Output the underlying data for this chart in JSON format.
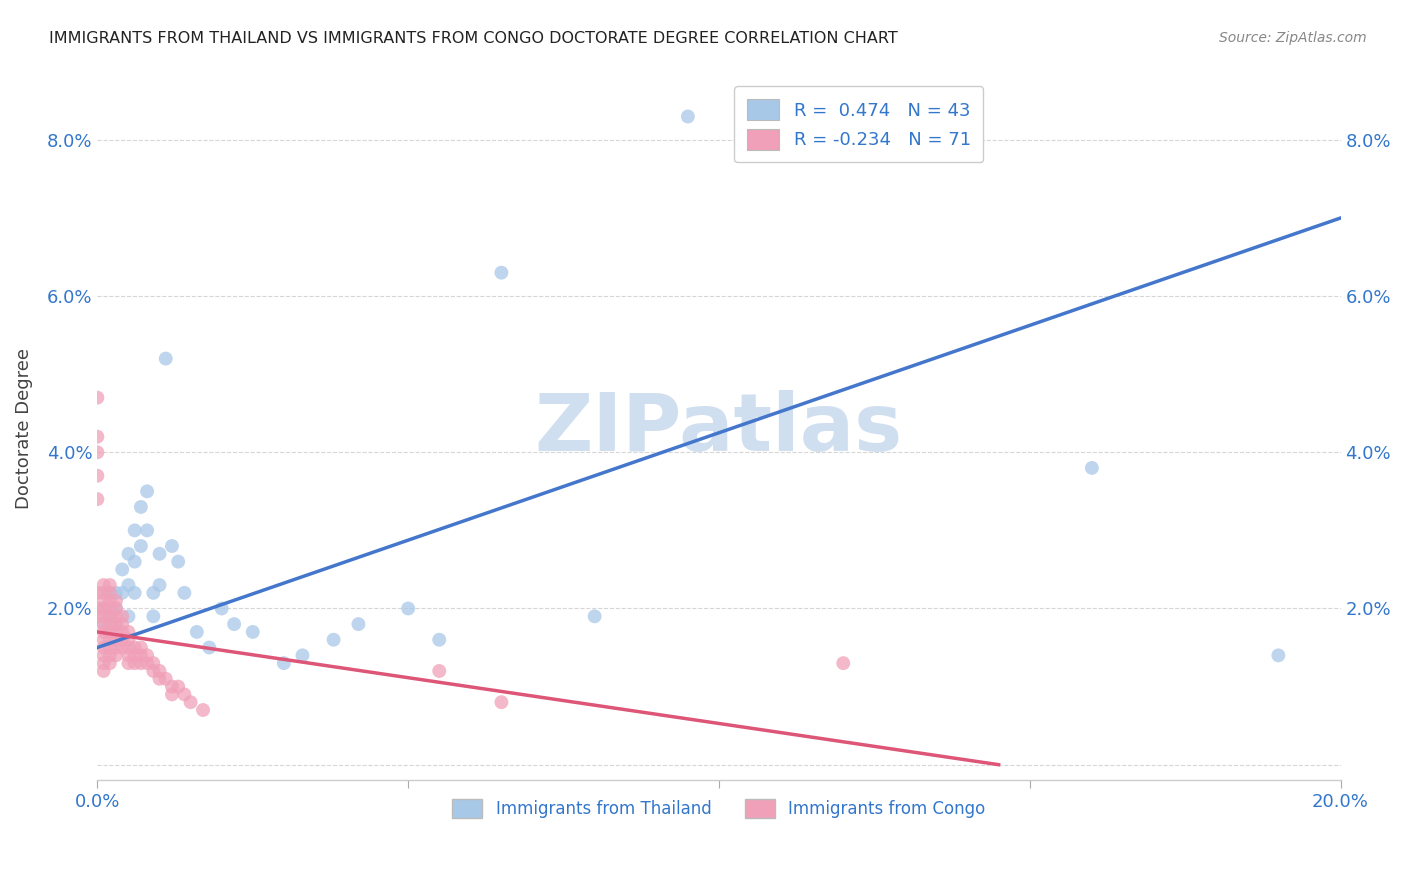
{
  "title": "IMMIGRANTS FROM THAILAND VS IMMIGRANTS FROM CONGO DOCTORATE DEGREE CORRELATION CHART",
  "source": "Source: ZipAtlas.com",
  "ylabel": "Doctorate Degree",
  "xlim": [
    0.0,
    0.2
  ],
  "ylim": [
    -0.002,
    0.088
  ],
  "yticks": [
    0.0,
    0.02,
    0.04,
    0.06,
    0.08
  ],
  "ytick_labels": [
    "",
    "2.0%",
    "4.0%",
    "6.0%",
    "8.0%"
  ],
  "xticks": [
    0.0,
    0.05,
    0.1,
    0.15,
    0.2
  ],
  "xtick_labels": [
    "0.0%",
    "",
    "",
    "",
    "20.0%"
  ],
  "thailand_color": "#a8c8e8",
  "congo_color": "#f0a0b8",
  "thailand_line_color": "#4477cc",
  "congo_line_color": "#dd5577",
  "watermark": "ZIPatlas",
  "watermark_color": "#d0dff0",
  "legend_R_thailand": "0.474",
  "legend_N_thailand": "43",
  "legend_R_congo": "-0.234",
  "legend_N_congo": "71",
  "thailand_x": [
    0.001,
    0.001,
    0.002,
    0.002,
    0.003,
    0.003,
    0.003,
    0.004,
    0.004,
    0.005,
    0.005,
    0.005,
    0.006,
    0.006,
    0.006,
    0.007,
    0.007,
    0.008,
    0.008,
    0.009,
    0.009,
    0.01,
    0.01,
    0.011,
    0.012,
    0.013,
    0.014,
    0.016,
    0.018,
    0.02,
    0.022,
    0.025,
    0.03,
    0.033,
    0.038,
    0.042,
    0.05,
    0.055,
    0.065,
    0.08,
    0.095,
    0.16,
    0.19
  ],
  "thailand_y": [
    0.02,
    0.018,
    0.022,
    0.019,
    0.022,
    0.02,
    0.018,
    0.025,
    0.022,
    0.027,
    0.023,
    0.019,
    0.03,
    0.026,
    0.022,
    0.033,
    0.028,
    0.035,
    0.03,
    0.022,
    0.019,
    0.027,
    0.023,
    0.052,
    0.028,
    0.026,
    0.022,
    0.017,
    0.015,
    0.02,
    0.018,
    0.017,
    0.013,
    0.014,
    0.016,
    0.018,
    0.02,
    0.016,
    0.063,
    0.019,
    0.083,
    0.038,
    0.014
  ],
  "congo_x": [
    0.0,
    0.0,
    0.0,
    0.0,
    0.0,
    0.0,
    0.0,
    0.0,
    0.001,
    0.001,
    0.001,
    0.001,
    0.001,
    0.001,
    0.001,
    0.001,
    0.001,
    0.001,
    0.001,
    0.001,
    0.002,
    0.002,
    0.002,
    0.002,
    0.002,
    0.002,
    0.002,
    0.002,
    0.002,
    0.002,
    0.002,
    0.003,
    0.003,
    0.003,
    0.003,
    0.003,
    0.003,
    0.003,
    0.003,
    0.004,
    0.004,
    0.004,
    0.004,
    0.004,
    0.005,
    0.005,
    0.005,
    0.005,
    0.005,
    0.006,
    0.006,
    0.006,
    0.007,
    0.007,
    0.007,
    0.008,
    0.008,
    0.009,
    0.009,
    0.01,
    0.01,
    0.011,
    0.012,
    0.012,
    0.013,
    0.014,
    0.015,
    0.017,
    0.055,
    0.065,
    0.12
  ],
  "congo_y": [
    0.047,
    0.042,
    0.04,
    0.037,
    0.034,
    0.022,
    0.02,
    0.019,
    0.023,
    0.022,
    0.021,
    0.02,
    0.019,
    0.018,
    0.017,
    0.016,
    0.015,
    0.014,
    0.013,
    0.012,
    0.023,
    0.022,
    0.021,
    0.02,
    0.019,
    0.018,
    0.017,
    0.016,
    0.015,
    0.014,
    0.013,
    0.021,
    0.02,
    0.019,
    0.018,
    0.017,
    0.016,
    0.015,
    0.014,
    0.019,
    0.018,
    0.017,
    0.016,
    0.015,
    0.017,
    0.016,
    0.015,
    0.014,
    0.013,
    0.015,
    0.014,
    0.013,
    0.015,
    0.014,
    0.013,
    0.014,
    0.013,
    0.013,
    0.012,
    0.012,
    0.011,
    0.011,
    0.01,
    0.009,
    0.01,
    0.009,
    0.008,
    0.007,
    0.012,
    0.008,
    0.013
  ]
}
